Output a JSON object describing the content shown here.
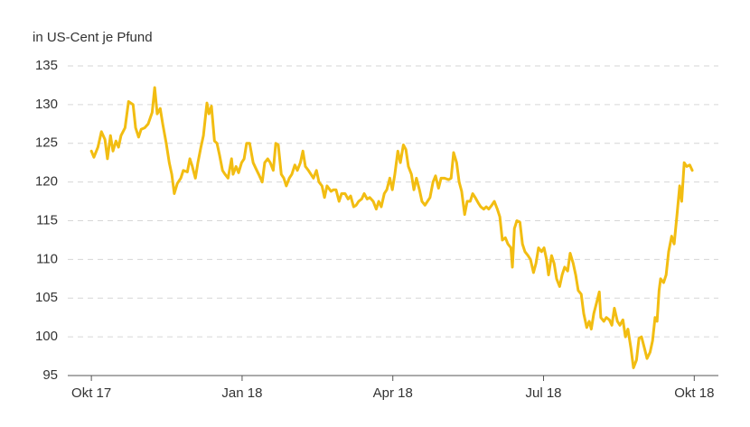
{
  "chart_data": {
    "type": "line",
    "title": "in US-Cent je Pfund",
    "color": "#f2bd12",
    "x": [
      0,
      0.05,
      0.13,
      0.2,
      0.27,
      0.32,
      0.38,
      0.43,
      0.49,
      0.54,
      0.59,
      0.67,
      0.74,
      0.83,
      0.88,
      0.94,
      0.99,
      1.06,
      1.13,
      1.21,
      1.26,
      1.31,
      1.37,
      1.42,
      1.49,
      1.55,
      1.6,
      1.65,
      1.71,
      1.78,
      1.83,
      1.91,
      1.96,
      2.01,
      2.07,
      2.12,
      2.18,
      2.23,
      2.3,
      2.34,
      2.39,
      2.45,
      2.5,
      2.55,
      2.61,
      2.66,
      2.72,
      2.79,
      2.82,
      2.88,
      2.93,
      2.99,
      3.04,
      3.09,
      3.15,
      3.22,
      3.27,
      3.33,
      3.4,
      3.45,
      3.51,
      3.56,
      3.62,
      3.67,
      3.72,
      3.78,
      3.83,
      3.88,
      3.94,
      3.99,
      4.05,
      4.1,
      4.16,
      4.21,
      4.26,
      4.32,
      4.37,
      4.42,
      4.48,
      4.53,
      4.59,
      4.64,
      4.69,
      4.77,
      4.82,
      4.87,
      4.93,
      4.98,
      5.05,
      5.11,
      5.16,
      5.22,
      5.27,
      5.32,
      5.38,
      5.43,
      5.49,
      5.54,
      5.61,
      5.67,
      5.72,
      5.77,
      5.83,
      5.88,
      5.94,
      5.99,
      6.04,
      6.1,
      6.15,
      6.21,
      6.26,
      6.31,
      6.37,
      6.42,
      6.47,
      6.53,
      6.58,
      6.64,
      6.69,
      6.74,
      6.8,
      6.85,
      6.91,
      6.96,
      7.03,
      7.11,
      7.16,
      7.21,
      7.27,
      7.32,
      7.37,
      7.43,
      7.48,
      7.54,
      7.59,
      7.64,
      7.7,
      7.75,
      7.81,
      7.86,
      7.91,
      7.97,
      8.02,
      8.08,
      8.13,
      8.18,
      8.24,
      8.29,
      8.35,
      8.38,
      8.42,
      8.47,
      8.53,
      8.58,
      8.63,
      8.69,
      8.74,
      8.8,
      8.85,
      8.9,
      8.96,
      9.01,
      9.06,
      9.1,
      9.16,
      9.21,
      9.26,
      9.32,
      9.37,
      9.42,
      9.48,
      9.53,
      9.59,
      9.64,
      9.69,
      9.75,
      9.8,
      9.86,
      9.91,
      9.95,
      10.0,
      10.06,
      10.11,
      10.14,
      10.2,
      10.25,
      10.31,
      10.36,
      10.41,
      10.47,
      10.52,
      10.58,
      10.63,
      10.68,
      10.74,
      10.79,
      10.85,
      10.9,
      10.95,
      11.01,
      11.06,
      11.12,
      11.17,
      11.22,
      11.26,
      11.3,
      11.33,
      11.39,
      11.44,
      11.49,
      11.55,
      11.6,
      11.66,
      11.71,
      11.75,
      11.8,
      11.85,
      11.91,
      11.96
    ],
    "values": [
      124.0,
      123.2,
      124.5,
      126.5,
      125.5,
      123.0,
      126.0,
      124.0,
      125.3,
      124.5,
      126.0,
      127.0,
      130.4,
      130.0,
      127.0,
      125.8,
      126.8,
      127.0,
      127.5,
      129.0,
      132.2,
      128.8,
      129.5,
      127.5,
      125.0,
      122.5,
      121.0,
      118.5,
      119.8,
      120.5,
      121.5,
      121.3,
      123.0,
      122.0,
      120.5,
      122.5,
      124.5,
      126.0,
      130.2,
      128.8,
      129.8,
      125.3,
      125.0,
      123.5,
      121.5,
      121.0,
      120.5,
      123.0,
      121.0,
      122.0,
      121.2,
      122.5,
      123.0,
      125.0,
      125.0,
      122.5,
      121.8,
      121.0,
      120.0,
      122.5,
      123.0,
      122.5,
      121.5,
      125.0,
      124.8,
      121.0,
      120.5,
      119.5,
      120.5,
      121.0,
      122.2,
      121.5,
      122.5,
      124.0,
      122.0,
      121.5,
      121.0,
      120.5,
      121.5,
      120.0,
      119.5,
      118.0,
      119.5,
      118.8,
      119.0,
      119.0,
      117.5,
      118.5,
      118.5,
      117.8,
      118.2,
      116.8,
      117.0,
      117.5,
      117.8,
      118.5,
      117.8,
      118.0,
      117.5,
      116.5,
      117.5,
      116.8,
      118.5,
      119.0,
      120.5,
      119.0,
      121.0,
      124.0,
      122.5,
      124.8,
      124.2,
      122.0,
      121.0,
      119.0,
      120.5,
      119.0,
      117.5,
      117.0,
      117.5,
      118.0,
      120.0,
      120.8,
      119.2,
      120.5,
      120.5,
      120.3,
      120.5,
      123.8,
      122.5,
      120.0,
      118.8,
      115.8,
      117.5,
      117.5,
      118.5,
      118.0,
      117.3,
      116.8,
      116.5,
      116.8,
      116.5,
      117.0,
      117.5,
      116.5,
      115.5,
      112.5,
      112.8,
      112.0,
      111.5,
      109.0,
      114.0,
      115.0,
      114.8,
      112.0,
      111.0,
      110.5,
      110.0,
      108.3,
      109.5,
      111.5,
      111.0,
      111.5,
      110.0,
      108.0,
      110.5,
      109.5,
      107.5,
      106.5,
      108.0,
      109.0,
      108.5,
      110.8,
      109.5,
      108.0,
      106.0,
      105.5,
      103.0,
      101.2,
      102.0,
      101.0,
      103.0,
      104.5,
      105.8,
      102.5,
      102.0,
      102.5,
      102.2,
      101.5,
      103.7,
      102.0,
      101.5,
      102.2,
      100.0,
      101.0,
      98.5,
      96.0,
      97.0,
      99.8,
      100.0,
      98.5,
      97.2,
      98.0,
      99.5,
      102.5,
      102.0,
      106.0,
      107.5,
      107.0,
      108.0,
      111.0,
      113.0,
      112.0,
      116.0,
      119.5,
      117.5,
      122.5,
      122.0,
      122.2,
      121.5
    ],
    "xlim": [
      -0.47,
      12.48
    ],
    "xticks": [
      {
        "value": 0,
        "label": "Okt 17"
      },
      {
        "value": 3,
        "label": "Jan 18"
      },
      {
        "value": 6,
        "label": "Apr 18"
      },
      {
        "value": 9,
        "label": "Jul 18"
      },
      {
        "value": 12,
        "label": "Okt 18"
      }
    ],
    "ylim": [
      95,
      135
    ],
    "yticks": [
      95,
      100,
      105,
      110,
      115,
      120,
      125,
      130,
      135
    ],
    "grid": true
  }
}
